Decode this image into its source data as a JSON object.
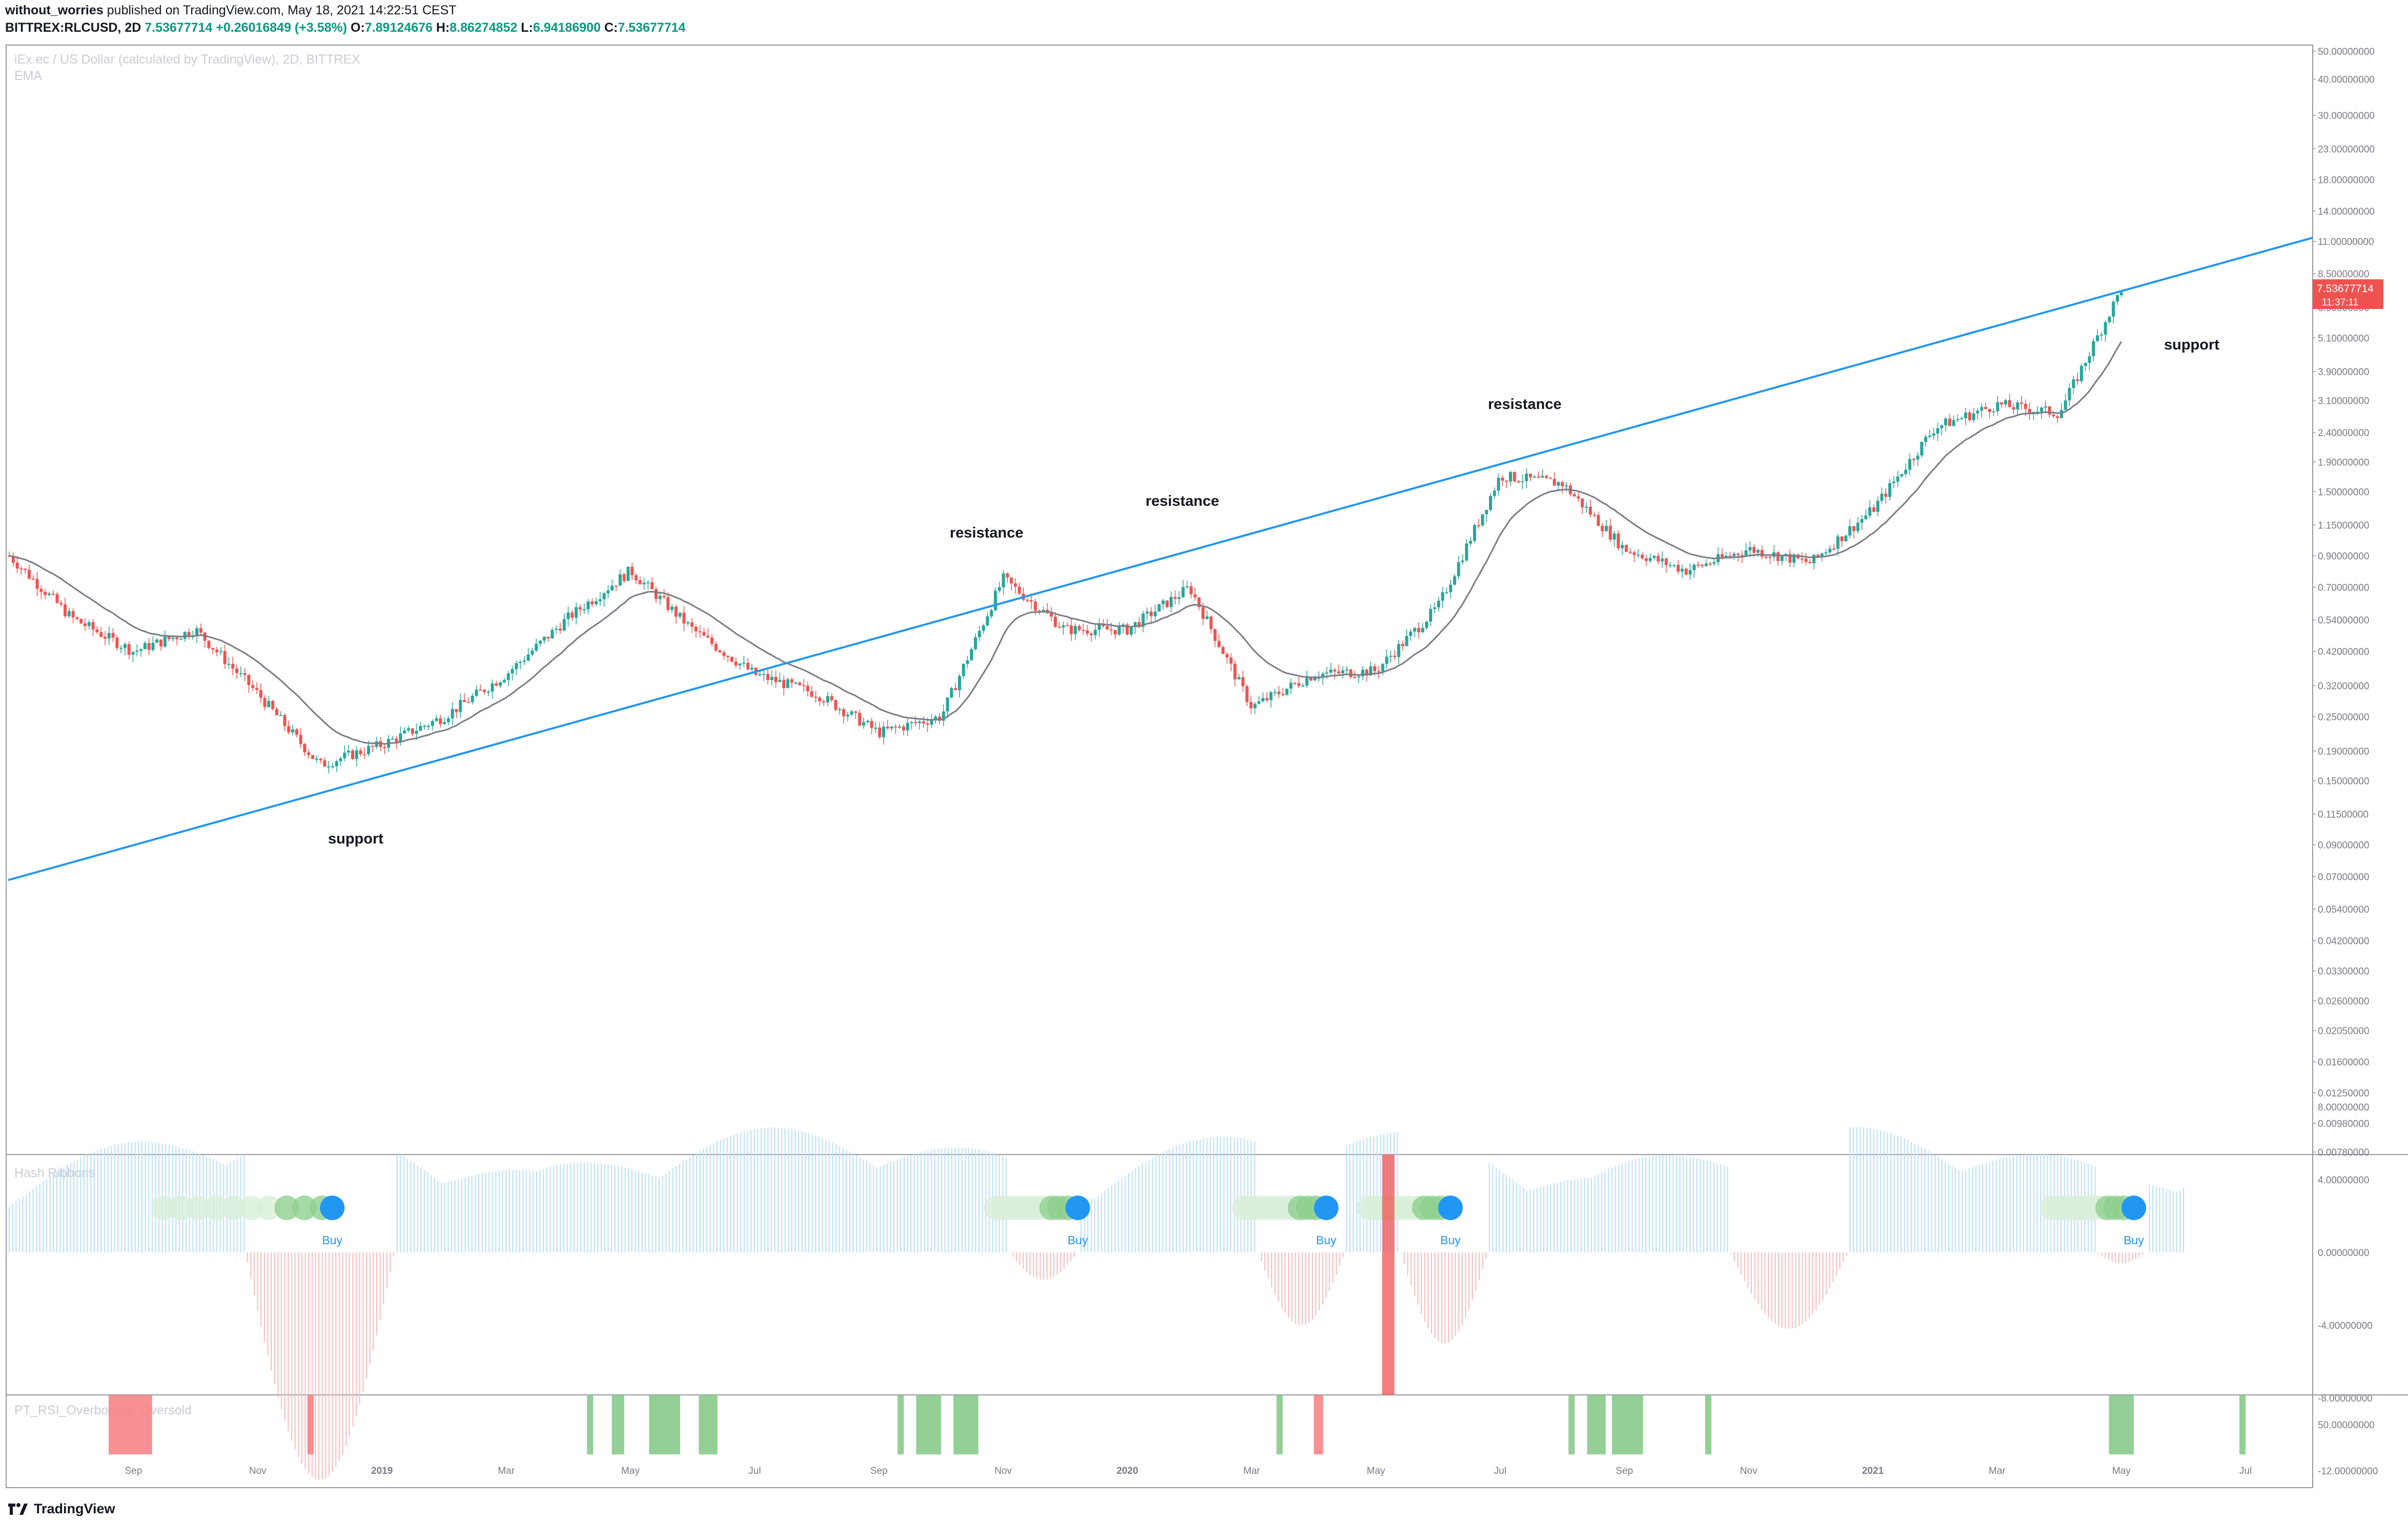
{
  "header": {
    "author": "without_worries",
    "published": "published on TradingView.com, May 18, 2021 14:22:51 CEST",
    "symbol": "BITTREX:RLCUSD, 2D",
    "price": "7.53677714",
    "change": "+0.26016849 (+3.58%)",
    "o_label": "O:",
    "o_value": "7.89124676",
    "h_label": "H:",
    "h_value": "8.86274852",
    "l_label": "L:",
    "l_value": "6.94186900",
    "c_label": "C:",
    "c_value": "7.53677714"
  },
  "main_pane": {
    "title": "iEx.ec / US Dollar (calculated by TradingView), 2D, BITTREX",
    "indicator": "EMA"
  },
  "hash_pane": {
    "title": "Hash Ribbons",
    "buy_label": "Buy"
  },
  "rsi_pane": {
    "title": "PT_RSI_Overbought_Oversold"
  },
  "price_badge": {
    "price": "7.53677714",
    "countdown": "11:37:11",
    "color": "#ef5350"
  },
  "footer": {
    "brand": "TradingView"
  },
  "colors": {
    "up": "#26a69a",
    "down": "#ef5350",
    "trendline": "#2196f3",
    "ema": "#787b86",
    "buy": "#2196f3"
  },
  "chart_data": [
    {
      "type": "candlestick",
      "scale": "log",
      "title": "iEx.ec / US Dollar (calculated by TradingView), 2D, BITTREX",
      "x_ticks": [
        "Sep",
        "Nov",
        "2019",
        "Mar",
        "May",
        "Jul",
        "Sep",
        "Nov",
        "2020",
        "Mar",
        "May",
        "Jul",
        "Sep",
        "Nov",
        "2021",
        "Mar",
        "May",
        "Jul"
      ],
      "y_ticks": [
        "0.00780000",
        "0.00980000",
        "0.01250000",
        "0.01600000",
        "0.02050000",
        "0.02600000",
        "0.03300000",
        "0.04200000",
        "0.05400000",
        "0.07000000",
        "0.09000000",
        "0.11500000",
        "0.15000000",
        "0.19000000",
        "0.25000000",
        "0.32000000",
        "0.42000000",
        "0.54000000",
        "0.70000000",
        "0.90000000",
        "1.15000000",
        "1.50000000",
        "1.90000000",
        "2.40000000",
        "3.10000000",
        "3.90000000",
        "5.10000000",
        "6.50000000",
        "8.50000000",
        "11.00000000",
        "14.00000000",
        "18.00000000",
        "23.00000000",
        "30.00000000",
        "40.00000000",
        "50.00000000"
      ],
      "price_path": [
        {
          "date": "Jul 2018",
          "close": 0.9
        },
        {
          "date": "Aug 2018",
          "close": 0.55
        },
        {
          "date": "Sep 2018",
          "close": 0.42
        },
        {
          "date": "Oct 2018",
          "close": 0.5
        },
        {
          "date": "Nov 2018",
          "close": 0.3
        },
        {
          "date": "Dec 2018",
          "close": 0.17
        },
        {
          "date": "Jan 2019",
          "close": 0.2
        },
        {
          "date": "Feb 2019",
          "close": 0.25
        },
        {
          "date": "Mar 2019",
          "close": 0.35
        },
        {
          "date": "Apr 2019",
          "close": 0.55
        },
        {
          "date": "May 2019",
          "close": 0.8
        },
        {
          "date": "Jun 2019",
          "close": 0.5
        },
        {
          "date": "Jul 2019",
          "close": 0.35
        },
        {
          "date": "Aug 2019",
          "close": 0.3
        },
        {
          "date": "Sep 2019",
          "close": 0.22
        },
        {
          "date": "Oct 2019",
          "close": 0.25
        },
        {
          "date": "Nov 2019",
          "close": 0.75
        },
        {
          "date": "Dec 2019",
          "close": 0.5
        },
        {
          "date": "Jan 2020",
          "close": 0.5
        },
        {
          "date": "Feb 2020",
          "close": 0.7
        },
        {
          "date": "Mar 2020",
          "close": 0.27
        },
        {
          "date": "Apr 2020",
          "close": 0.35
        },
        {
          "date": "May 2020",
          "close": 0.36
        },
        {
          "date": "Jun 2020",
          "close": 0.6
        },
        {
          "date": "Jul 2020",
          "close": 1.7
        },
        {
          "date": "Aug 2020",
          "close": 1.6
        },
        {
          "date": "Sep 2020",
          "close": 0.95
        },
        {
          "date": "Oct 2020",
          "close": 0.8
        },
        {
          "date": "Nov 2020",
          "close": 0.95
        },
        {
          "date": "Dec 2020",
          "close": 0.85
        },
        {
          "date": "Jan 2021",
          "close": 1.3
        },
        {
          "date": "Feb 2021",
          "close": 2.5
        },
        {
          "date": "Mar 2021",
          "close": 3.0
        },
        {
          "date": "Apr 2021",
          "close": 2.8
        },
        {
          "date": "May 2021",
          "close": 7.54
        }
      ],
      "trendline": {
        "from": {
          "date": "Jul 2018",
          "price": 0.068
        },
        "to": {
          "date": "Jun 2021",
          "price": 8.5
        }
      },
      "annotations": [
        "support",
        "resistance",
        "resistance",
        "resistance",
        "support"
      ]
    },
    {
      "type": "histogram",
      "title": "Hash Ribbons",
      "y_ticks": [
        "8.00000000",
        "4.00000000",
        "0.00000000",
        "-4.00000000",
        "-8.00000000",
        "-12.00000000"
      ],
      "buy_signals": [
        "Dec 2018",
        "Dec 2019",
        "Apr 2020",
        "Jun 2020",
        "May 2021"
      ]
    },
    {
      "type": "bar",
      "title": "PT_RSI_Overbought_Oversold",
      "y_ticks": [
        "50.00000000"
      ]
    }
  ]
}
